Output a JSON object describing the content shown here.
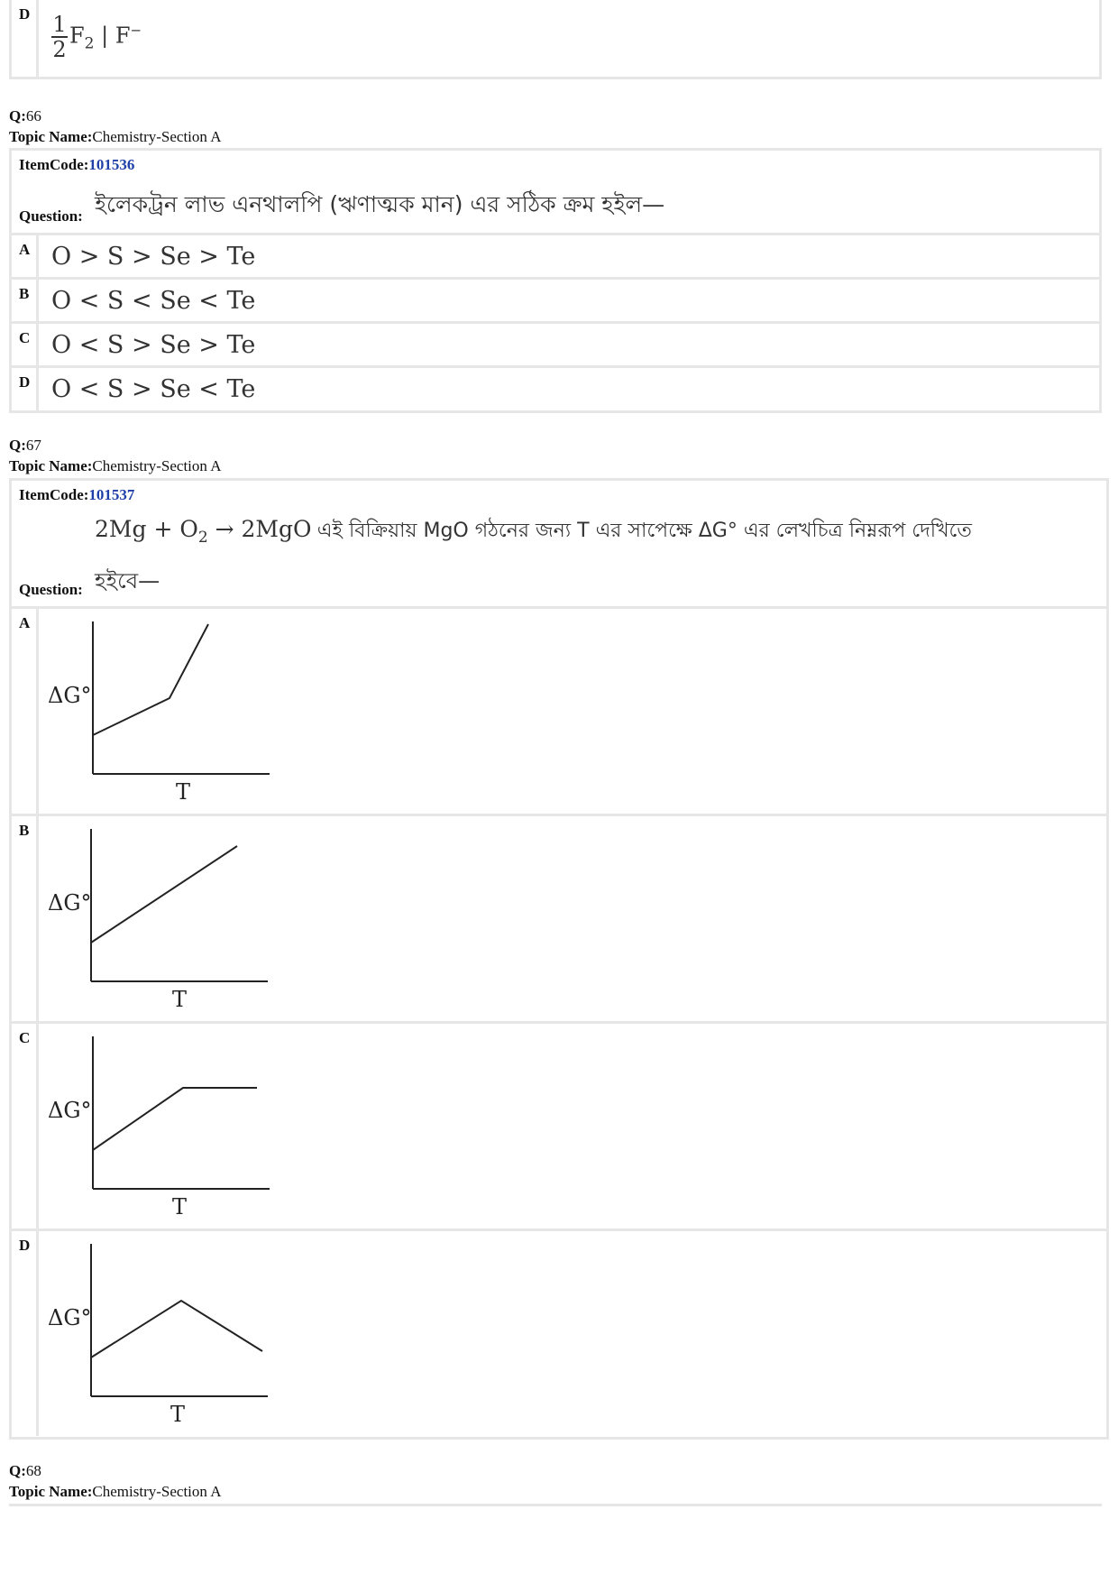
{
  "prev_option": {
    "letter": "D",
    "fraction_num": "1",
    "fraction_den": "2",
    "species": "F",
    "subscript": "2",
    "rest": " | F",
    "superscript": "−"
  },
  "q66": {
    "q_label": "Q:",
    "q_num": "66",
    "topic_label": "Topic Name:",
    "topic": "Chemistry-Section A",
    "itemcode_label": "ItemCode:",
    "itemcode": "101536",
    "question_label": "Question:",
    "question_text": "ইলেকট্রন লাভ এনথালপি (ঋণাত্মক মান) এর সঠিক ক্রম হইল—",
    "options": [
      {
        "letter": "A",
        "text": "O > S > Se > Te"
      },
      {
        "letter": "B",
        "text": "O < S < Se < Te"
      },
      {
        "letter": "C",
        "text": "O < S > Se > Te"
      },
      {
        "letter": "D",
        "text": "O < S > Se < Te"
      }
    ]
  },
  "q67": {
    "q_label": "Q:",
    "q_num": "67",
    "topic_label": "Topic Name:",
    "topic": "Chemistry-Section A",
    "itemcode_label": "ItemCode:",
    "itemcode": "101537",
    "question_label": "Question:",
    "eq_left": "2Mg + O",
    "eq_sub": "2",
    "eq_arrow": " → 2MgO",
    "question_text_1": "এই বিক্রিয়ায় MgO গঠনের জন্য T এর সাপেক্ষে ΔG° এর লেখচিত্র নিম্নরূপ দেখিতে",
    "question_text_2": "হইবে—",
    "graph_ylabel": "ΔG°",
    "graph_xlabel": "T",
    "options": [
      {
        "letter": "A"
      },
      {
        "letter": "B"
      },
      {
        "letter": "C"
      },
      {
        "letter": "D"
      }
    ]
  },
  "q68": {
    "q_label": "Q:",
    "q_num": "68",
    "topic_label": "Topic Name:",
    "topic": "Chemistry-Section A"
  }
}
